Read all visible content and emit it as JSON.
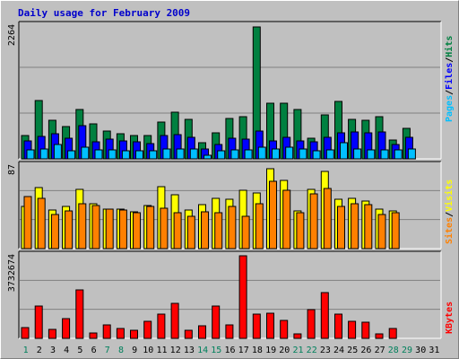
{
  "chart_data": {
    "type": "bar",
    "title": "Daily usage for February 2009",
    "days": [
      "1",
      "2",
      "3",
      "4",
      "5",
      "6",
      "7",
      "8",
      "9",
      "10",
      "11",
      "12",
      "13",
      "14",
      "15",
      "16",
      "17",
      "18",
      "19",
      "20",
      "21",
      "22",
      "23",
      "24",
      "25",
      "26",
      "27",
      "28",
      "29",
      "30",
      "31"
    ],
    "weekend_days": [
      "1",
      "7",
      "8",
      "14",
      "15",
      "21",
      "22",
      "28",
      "29"
    ],
    "panels": [
      {
        "id": "hits",
        "scale_label": "2264",
        "ylim": [
          0,
          2264
        ],
        "series": [
          {
            "name": "Hits",
            "color": "#008040",
            "values": [
              400,
              990,
              660,
              550,
              840,
              590,
              470,
              420,
              390,
              390,
              630,
              790,
              670,
              270,
              440,
              690,
              720,
              2240,
              940,
              940,
              840,
              350,
              750,
              980,
              670,
              660,
              710,
              320,
              520
            ]
          },
          {
            "name": "Files",
            "color": "#0000ff",
            "values": [
              300,
              380,
              420,
              350,
              560,
              290,
              330,
              300,
              290,
              260,
              390,
              410,
              370,
              170,
              240,
              350,
              340,
              470,
              310,
              360,
              300,
              290,
              360,
              440,
              450,
              440,
              450,
              240,
              360
            ]
          },
          {
            "name": "Pages",
            "color": "#00bfff",
            "values": [
              150,
              170,
              250,
              140,
              200,
              150,
              150,
              130,
              130,
              140,
              160,
              170,
              160,
              60,
              140,
              150,
              150,
              190,
              160,
              200,
              170,
              140,
              150,
              280,
              160,
              150,
              150,
              150,
              160
            ]
          }
        ]
      },
      {
        "id": "visits",
        "scale_label": "87",
        "ylim": [
          0,
          87
        ],
        "series": [
          {
            "name": "Visits",
            "color": "#ffff00",
            "values": [
              44,
              64,
              40,
              44,
              62,
              47,
              41,
              41,
              38,
              45,
              65,
              56,
              40,
              46,
              52,
              51,
              61,
              58,
              83,
              71,
              39,
              62,
              80,
              51,
              52,
              50,
              41,
              39
            ]
          },
          {
            "name": "Sites",
            "color": "#ff8000",
            "values": [
              54,
              52,
              36,
              39,
              47,
              45,
              41,
              40,
              37,
              44,
              42,
              37,
              34,
              38,
              37,
              44,
              34,
              47,
              70,
              61,
              37,
              57,
              63,
              44,
              47,
              46,
              36,
              37
            ]
          }
        ]
      },
      {
        "id": "kbytes",
        "scale_label": "3732674",
        "ylim": [
          0,
          3732674
        ],
        "series": [
          {
            "name": "KBytes",
            "color": "#ff0000",
            "values": [
              470000,
              1440000,
              400000,
              900000,
              2180000,
              240000,
              590000,
              440000,
              380000,
              780000,
              1090000,
              1550000,
              380000,
              560000,
              1460000,
              590000,
              3700000,
              1080000,
              1110000,
              810000,
              220000,
              1300000,
              2030000,
              1100000,
              780000,
              730000,
              210000,
              440000
            ]
          }
        ]
      }
    ],
    "legends": [
      {
        "panel": "hits",
        "items": [
          {
            "text": "Pages",
            "color": "#00bfff"
          },
          {
            "text": "/",
            "color": "#000000"
          },
          {
            "text": "Files",
            "color": "#0000ff"
          },
          {
            "text": "/",
            "color": "#000000"
          },
          {
            "text": "Hits",
            "color": "#008040"
          }
        ]
      },
      {
        "panel": "visits",
        "items": [
          {
            "text": "Sites",
            "color": "#ff8000"
          },
          {
            "text": "/",
            "color": "#000000"
          },
          {
            "text": "Visits",
            "color": "#ffff00"
          }
        ]
      },
      {
        "panel": "kbytes",
        "items": [
          {
            "text": "KBytes",
            "color": "#ff0000"
          }
        ]
      }
    ],
    "colors": {
      "background": "#c0c0c0",
      "panel_bg": "#c0c0c0",
      "gridline": "#808080",
      "weekend_label": "#00805c",
      "weekday_label": "#000000",
      "title": "#0000cc"
    }
  }
}
